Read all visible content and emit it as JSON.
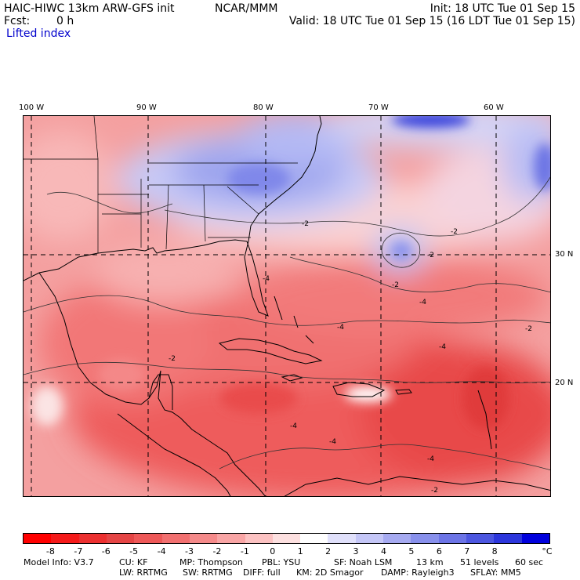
{
  "header": {
    "model": "HAIC-HIWC 13km ARW-GFS init",
    "center": "NCAR/MMM",
    "fcst_label": "Fcst:",
    "fcst_value": "0 h",
    "field": "Lifted index",
    "init": "Init: 18 UTC Tue 01 Sep 15",
    "valid": "Valid: 18 UTC Tue 01 Sep 15 (16 LDT Tue 01 Sep 15)"
  },
  "map": {
    "lon_labels": [
      "100 W",
      "90 W",
      "80 W",
      "70 W",
      "60 W"
    ],
    "lat_labels": [
      "30 N",
      "20 N"
    ],
    "contour_labels": [
      "-2",
      "-2",
      "-2",
      "-2",
      "-2",
      "-2",
      "-4",
      "-4",
      "-4",
      "-4",
      "-4",
      "-4",
      "-4",
      "-2"
    ]
  },
  "colorbar": {
    "colors": [
      "#ff0000",
      "#f51a1a",
      "#ec3030",
      "#e54545",
      "#ee5858",
      "#f27070",
      "#f58a8a",
      "#f9a5a5",
      "#fcc2c2",
      "#fde0e0",
      "#ffffff",
      "#e0e0fb",
      "#c4c6f7",
      "#a6aaf1",
      "#8890ec",
      "#6c74e6",
      "#4c56e0",
      "#2c36dc",
      "#0000dd"
    ],
    "labels": [
      "-8",
      "-7",
      "-6",
      "-5",
      "-4",
      "-3",
      "-2",
      "-1",
      "0",
      "1",
      "2",
      "3",
      "4",
      "5",
      "6",
      "7",
      "8"
    ],
    "unit": "°C"
  },
  "footer": {
    "line1": [
      "Model Info: V3.7",
      "CU: KF",
      "MP: Thompson",
      "PBL: YSU",
      "SF: Noah LSM",
      "13 km",
      "51 levels",
      "60 sec"
    ],
    "line2": [
      "LW: RRTMG",
      "SW: RRTMG",
      "DIFF: full",
      "KM: 2D Smagor",
      "DAMP: Rayleigh3",
      "SFLAY: MM5"
    ]
  }
}
